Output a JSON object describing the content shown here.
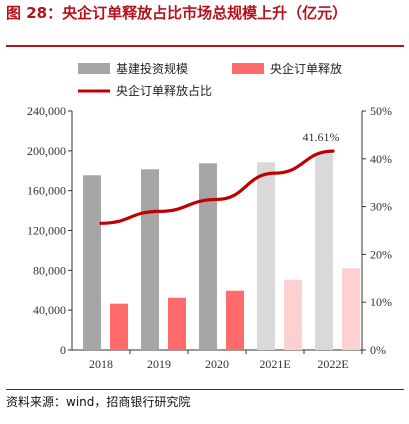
{
  "title": "图 28：央企订单释放占比市场总规模上升（亿元）",
  "source": "资料来源：wind，招商银行研究院",
  "colors": {
    "title": "#b5121b",
    "total": "#a6a6a6",
    "total_forecast": "#d9d9d9",
    "soe": "#ff6b6b",
    "soe_forecast": "#ffd0d0",
    "ratio": "#c00000"
  },
  "chart_data": {
    "type": "bar",
    "categories": [
      "2018",
      "2019",
      "2020",
      "2021E",
      "2022E"
    ],
    "series": [
      {
        "name": "基建投资规模",
        "kind": "bar",
        "axis": "left",
        "values": [
          175500,
          181500,
          187500,
          188500,
          197000
        ]
      },
      {
        "name": "央企订单释放",
        "kind": "bar",
        "axis": "left",
        "values": [
          46500,
          52500,
          59500,
          70500,
          82000
        ]
      },
      {
        "name": "央企订单释放占比",
        "kind": "line",
        "axis": "right",
        "values": [
          26.5,
          29.0,
          31.5,
          37.0,
          41.61
        ]
      }
    ],
    "forecast_categories": [
      "2021E",
      "2022E"
    ],
    "annotation": "41.61%",
    "y_left": {
      "min": 0,
      "max": 240000,
      "ticks": [
        "0",
        "40,000",
        "80,000",
        "120,000",
        "160,000",
        "200,000",
        "240,000"
      ]
    },
    "y_right": {
      "min": 0,
      "max": 50,
      "ticks": [
        "0%",
        "10%",
        "20%",
        "30%",
        "40%",
        "50%"
      ]
    },
    "grid": false,
    "legend_position": "top"
  }
}
